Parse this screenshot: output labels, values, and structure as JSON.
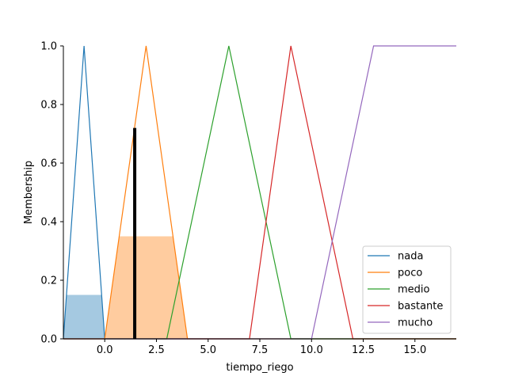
{
  "chart_data": {
    "type": "line",
    "xlabel": "tiempo_riego",
    "ylabel": "Membership",
    "xlim": [
      -2,
      17
    ],
    "ylim": [
      0,
      1.0
    ],
    "x_ticks": [
      0,
      2.5,
      5,
      7.5,
      10,
      12.5,
      15
    ],
    "x_tick_labels": [
      "0.0",
      "2.5",
      "5.0",
      "7.5",
      "10.0",
      "12.5",
      "15.0"
    ],
    "y_ticks": [
      0,
      0.2,
      0.4,
      0.6,
      0.8,
      1.0
    ],
    "y_tick_labels": [
      "0.0",
      "0.2",
      "0.4",
      "0.6",
      "0.8",
      "1.0"
    ],
    "legend_position": "bottom-right",
    "series": [
      {
        "name": "nada",
        "color": "#1f77b4",
        "x": [
          -2,
          -1,
          0,
          17
        ],
        "y": [
          0,
          1,
          0,
          0
        ]
      },
      {
        "name": "poco",
        "color": "#ff7f0e",
        "x": [
          -2,
          0,
          2,
          4,
          17
        ],
        "y": [
          0,
          0,
          1,
          0,
          0
        ]
      },
      {
        "name": "medio",
        "color": "#2ca02c",
        "x": [
          -2,
          3,
          6,
          9,
          17
        ],
        "y": [
          0,
          0,
          1,
          0,
          0
        ]
      },
      {
        "name": "bastante",
        "color": "#d62728",
        "x": [
          -2,
          7,
          9,
          12,
          17
        ],
        "y": [
          0,
          0,
          1,
          0,
          0
        ]
      },
      {
        "name": "mucho",
        "color": "#9467bd",
        "x": [
          -2,
          10,
          13,
          17
        ],
        "y": [
          0,
          0,
          1,
          1
        ]
      }
    ],
    "activations": [
      {
        "series": "nada",
        "color": "#1f77b4",
        "level": 0.15,
        "x": [
          -2,
          -1.85,
          -0.15,
          0
        ],
        "y": [
          0,
          0.15,
          0.15,
          0
        ]
      },
      {
        "series": "poco",
        "color": "#ff7f0e",
        "level": 0.35,
        "x": [
          0,
          0.7,
          3.3,
          4
        ],
        "y": [
          0,
          0.35,
          0.35,
          0
        ]
      }
    ],
    "output_value": {
      "x": 1.45,
      "membership": 0.72
    }
  }
}
